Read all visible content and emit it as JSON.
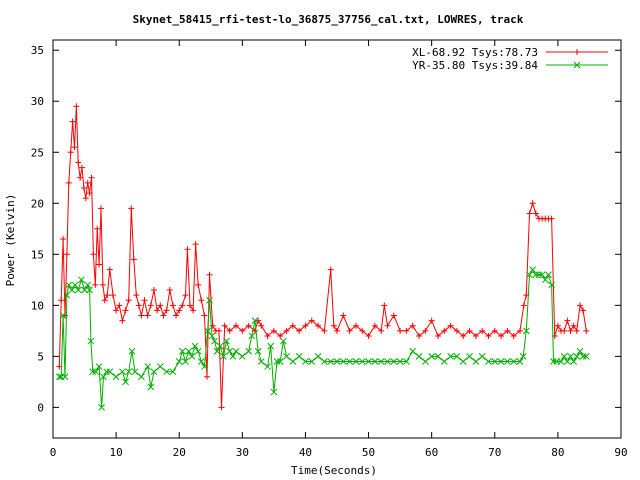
{
  "chart_data": {
    "type": "line",
    "title": "Skynet_58415_rfi-test-lo_36875_37756_cal.txt, LOWRES, track",
    "xlabel": "Time(Seconds)",
    "ylabel": "Power (Kelvin)",
    "xlim": [
      0,
      90
    ],
    "ylim": [
      -3,
      36
    ],
    "xticks": [
      0,
      10,
      20,
      30,
      40,
      50,
      60,
      70,
      80,
      90
    ],
    "yticks": [
      0,
      5,
      10,
      15,
      20,
      25,
      30,
      35
    ],
    "grid": false,
    "legend_position": "top-right",
    "series": [
      {
        "name": "XL-68.92 Tsys:78.73",
        "color": "#ff0000",
        "marker": "plus",
        "points": [
          [
            1.0,
            4.0
          ],
          [
            1.3,
            10.5
          ],
          [
            1.6,
            16.5
          ],
          [
            1.9,
            9.0
          ],
          [
            2.2,
            15.0
          ],
          [
            2.5,
            22.0
          ],
          [
            2.8,
            25.0
          ],
          [
            3.1,
            28.0
          ],
          [
            3.4,
            25.5
          ],
          [
            3.7,
            29.5
          ],
          [
            4.0,
            24.0
          ],
          [
            4.3,
            22.5
          ],
          [
            4.6,
            23.5
          ],
          [
            4.9,
            21.5
          ],
          [
            5.2,
            20.5
          ],
          [
            5.5,
            22.0
          ],
          [
            5.8,
            21.0
          ],
          [
            6.1,
            22.5
          ],
          [
            6.4,
            15.0
          ],
          [
            6.7,
            12.0
          ],
          [
            7.0,
            17.5
          ],
          [
            7.3,
            14.0
          ],
          [
            7.6,
            19.5
          ],
          [
            7.9,
            12.0
          ],
          [
            8.2,
            10.5
          ],
          [
            8.6,
            11.0
          ],
          [
            9.0,
            13.5
          ],
          [
            9.5,
            11.0
          ],
          [
            10.0,
            9.5
          ],
          [
            10.5,
            10.0
          ],
          [
            11.0,
            8.5
          ],
          [
            11.5,
            9.5
          ],
          [
            12.0,
            10.5
          ],
          [
            12.4,
            19.5
          ],
          [
            12.8,
            14.5
          ],
          [
            13.2,
            11.0
          ],
          [
            13.6,
            10.0
          ],
          [
            14.0,
            9.0
          ],
          [
            14.5,
            10.5
          ],
          [
            15.0,
            9.0
          ],
          [
            15.5,
            10.0
          ],
          [
            16.0,
            11.5
          ],
          [
            16.5,
            9.5
          ],
          [
            17.0,
            10.0
          ],
          [
            17.5,
            9.0
          ],
          [
            18.0,
            9.5
          ],
          [
            18.5,
            11.5
          ],
          [
            19.0,
            10.0
          ],
          [
            19.5,
            9.0
          ],
          [
            20.0,
            9.5
          ],
          [
            20.5,
            10.0
          ],
          [
            21.0,
            11.0
          ],
          [
            21.3,
            15.5
          ],
          [
            21.7,
            10.0
          ],
          [
            22.2,
            9.5
          ],
          [
            22.6,
            16.0
          ],
          [
            23.0,
            12.0
          ],
          [
            23.5,
            10.5
          ],
          [
            24.0,
            9.0
          ],
          [
            24.4,
            3.0
          ],
          [
            24.8,
            13.0
          ],
          [
            25.3,
            8.0
          ],
          [
            25.8,
            7.5
          ],
          [
            26.3,
            7.5
          ],
          [
            26.7,
            0.0
          ],
          [
            27.2,
            8.0
          ],
          [
            28.0,
            7.5
          ],
          [
            29.0,
            8.0
          ],
          [
            30.0,
            7.5
          ],
          [
            31.0,
            8.0
          ],
          [
            32.0,
            7.5
          ],
          [
            32.5,
            8.5
          ],
          [
            33.0,
            8.0
          ],
          [
            34.0,
            7.0
          ],
          [
            35.0,
            7.5
          ],
          [
            36.0,
            7.0
          ],
          [
            37.0,
            7.5
          ],
          [
            38.0,
            8.0
          ],
          [
            39.0,
            7.5
          ],
          [
            40.0,
            8.0
          ],
          [
            41.0,
            8.5
          ],
          [
            42.0,
            8.0
          ],
          [
            43.0,
            7.5
          ],
          [
            44.0,
            13.5
          ],
          [
            44.5,
            8.0
          ],
          [
            45.0,
            7.5
          ],
          [
            46.0,
            9.0
          ],
          [
            47.0,
            7.5
          ],
          [
            48.0,
            8.0
          ],
          [
            49.0,
            7.5
          ],
          [
            50.0,
            7.0
          ],
          [
            51.0,
            8.0
          ],
          [
            52.0,
            7.5
          ],
          [
            52.5,
            10.0
          ],
          [
            53.0,
            8.0
          ],
          [
            54.0,
            9.0
          ],
          [
            55.0,
            7.5
          ],
          [
            56.0,
            7.5
          ],
          [
            57.0,
            8.0
          ],
          [
            58.0,
            7.0
          ],
          [
            59.0,
            7.5
          ],
          [
            60.0,
            8.5
          ],
          [
            61.0,
            7.0
          ],
          [
            62.0,
            7.5
          ],
          [
            63.0,
            8.0
          ],
          [
            64.0,
            7.5
          ],
          [
            65.0,
            7.0
          ],
          [
            66.0,
            7.5
          ],
          [
            67.0,
            7.0
          ],
          [
            68.0,
            7.5
          ],
          [
            69.0,
            7.0
          ],
          [
            70.0,
            7.5
          ],
          [
            71.0,
            7.0
          ],
          [
            72.0,
            7.5
          ],
          [
            73.0,
            7.0
          ],
          [
            74.0,
            7.5
          ],
          [
            74.6,
            10.0
          ],
          [
            75.0,
            11.0
          ],
          [
            75.5,
            19.0
          ],
          [
            76.0,
            20.0
          ],
          [
            76.5,
            19.0
          ],
          [
            77.0,
            18.5
          ],
          [
            77.5,
            18.5
          ],
          [
            78.0,
            18.5
          ],
          [
            78.5,
            18.5
          ],
          [
            79.0,
            18.5
          ],
          [
            79.5,
            7.0
          ],
          [
            80.0,
            8.0
          ],
          [
            80.5,
            7.5
          ],
          [
            81.0,
            7.5
          ],
          [
            81.5,
            8.5
          ],
          [
            82.0,
            7.5
          ],
          [
            82.5,
            8.0
          ],
          [
            83.0,
            7.5
          ],
          [
            83.5,
            10.0
          ],
          [
            84.0,
            9.5
          ],
          [
            84.5,
            7.5
          ]
        ]
      },
      {
        "name": "YR-35.80 Tsys:39.84",
        "color": "#00b000",
        "marker": "x",
        "points": [
          [
            1.0,
            3.0
          ],
          [
            1.3,
            3.0
          ],
          [
            1.6,
            9.0
          ],
          [
            1.9,
            3.0
          ],
          [
            2.2,
            11.0
          ],
          [
            2.5,
            12.0
          ],
          [
            3.0,
            11.5
          ],
          [
            3.5,
            12.0
          ],
          [
            4.0,
            11.5
          ],
          [
            4.5,
            12.5
          ],
          [
            5.0,
            11.5
          ],
          [
            5.5,
            12.0
          ],
          [
            5.8,
            11.5
          ],
          [
            6.0,
            6.5
          ],
          [
            6.3,
            3.5
          ],
          [
            6.8,
            3.5
          ],
          [
            7.3,
            4.0
          ],
          [
            7.7,
            0.0
          ],
          [
            8.0,
            3.0
          ],
          [
            8.5,
            3.5
          ],
          [
            9.0,
            3.5
          ],
          [
            10.0,
            3.0
          ],
          [
            11.0,
            3.5
          ],
          [
            11.5,
            2.5
          ],
          [
            12.0,
            3.5
          ],
          [
            12.5,
            5.5
          ],
          [
            13.0,
            3.5
          ],
          [
            14.0,
            3.0
          ],
          [
            15.0,
            4.0
          ],
          [
            15.5,
            2.0
          ],
          [
            16.0,
            3.5
          ],
          [
            17.0,
            4.0
          ],
          [
            18.0,
            3.5
          ],
          [
            19.0,
            3.5
          ],
          [
            20.0,
            4.5
          ],
          [
            20.5,
            5.5
          ],
          [
            21.0,
            4.5
          ],
          [
            21.5,
            5.5
          ],
          [
            22.0,
            5.0
          ],
          [
            22.5,
            6.0
          ],
          [
            23.0,
            5.5
          ],
          [
            23.5,
            4.5
          ],
          [
            24.0,
            4.0
          ],
          [
            24.5,
            7.5
          ],
          [
            24.8,
            10.5
          ],
          [
            25.2,
            7.0
          ],
          [
            25.6,
            6.5
          ],
          [
            26.0,
            5.5
          ],
          [
            26.5,
            6.0
          ],
          [
            27.0,
            5.0
          ],
          [
            27.5,
            6.5
          ],
          [
            28.0,
            5.5
          ],
          [
            28.5,
            5.0
          ],
          [
            29.0,
            5.5
          ],
          [
            30.0,
            5.0
          ],
          [
            31.0,
            5.5
          ],
          [
            31.5,
            7.0
          ],
          [
            32.0,
            8.5
          ],
          [
            32.5,
            5.5
          ],
          [
            33.0,
            4.5
          ],
          [
            34.0,
            4.0
          ],
          [
            34.5,
            6.0
          ],
          [
            35.0,
            1.5
          ],
          [
            35.5,
            4.5
          ],
          [
            36.0,
            4.5
          ],
          [
            36.5,
            6.5
          ],
          [
            37.0,
            5.0
          ],
          [
            38.0,
            4.5
          ],
          [
            39.0,
            5.0
          ],
          [
            40.0,
            4.5
          ],
          [
            41.0,
            4.5
          ],
          [
            42.0,
            5.0
          ],
          [
            43.0,
            4.5
          ],
          [
            44.0,
            4.5
          ],
          [
            45.0,
            4.5
          ],
          [
            46.0,
            4.5
          ],
          [
            47.0,
            4.5
          ],
          [
            48.0,
            4.5
          ],
          [
            49.0,
            4.5
          ],
          [
            50.0,
            4.5
          ],
          [
            51.0,
            4.5
          ],
          [
            52.0,
            4.5
          ],
          [
            53.0,
            4.5
          ],
          [
            54.0,
            4.5
          ],
          [
            55.0,
            4.5
          ],
          [
            56.0,
            4.5
          ],
          [
            57.0,
            5.5
          ],
          [
            58.0,
            5.0
          ],
          [
            59.0,
            4.5
          ],
          [
            60.0,
            5.0
          ],
          [
            61.0,
            5.0
          ],
          [
            62.0,
            4.5
          ],
          [
            63.0,
            5.0
          ],
          [
            64.0,
            5.0
          ],
          [
            65.0,
            4.5
          ],
          [
            66.0,
            5.0
          ],
          [
            67.0,
            4.5
          ],
          [
            68.0,
            5.0
          ],
          [
            69.0,
            4.5
          ],
          [
            70.0,
            4.5
          ],
          [
            71.0,
            4.5
          ],
          [
            72.0,
            4.5
          ],
          [
            73.0,
            4.5
          ],
          [
            74.0,
            4.5
          ],
          [
            74.5,
            5.0
          ],
          [
            75.0,
            7.5
          ],
          [
            75.5,
            13.0
          ],
          [
            76.0,
            13.5
          ],
          [
            76.5,
            13.0
          ],
          [
            77.0,
            13.0
          ],
          [
            77.5,
            13.0
          ],
          [
            78.0,
            12.5
          ],
          [
            78.5,
            13.0
          ],
          [
            79.0,
            12.0
          ],
          [
            79.3,
            4.5
          ],
          [
            79.8,
            4.5
          ],
          [
            80.5,
            4.5
          ],
          [
            81.0,
            5.0
          ],
          [
            81.5,
            4.5
          ],
          [
            82.0,
            5.0
          ],
          [
            82.5,
            4.5
          ],
          [
            83.0,
            5.0
          ],
          [
            83.5,
            5.5
          ],
          [
            84.0,
            5.0
          ],
          [
            84.5,
            5.0
          ]
        ]
      }
    ]
  }
}
